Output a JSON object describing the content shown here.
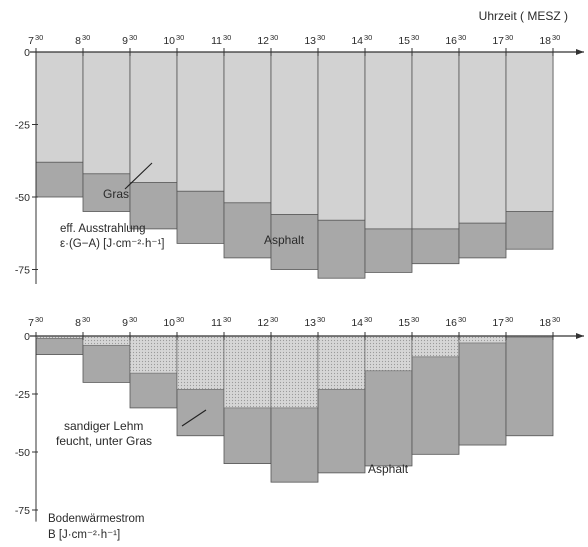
{
  "colors": {
    "grass": "#d2d2d2",
    "asphalt": "#a8a8a8",
    "axis": "#333333",
    "grid": "#b5b5b5"
  },
  "chart_data": [
    {
      "type": "bar",
      "x_time_label": "Uhrzeit ( MESZ )",
      "x_ticks": [
        {
          "h": "7",
          "m": "30"
        },
        {
          "h": "8",
          "m": "30"
        },
        {
          "h": "9",
          "m": "30"
        },
        {
          "h": "10",
          "m": "30"
        },
        {
          "h": "11",
          "m": "30"
        },
        {
          "h": "12",
          "m": "30"
        },
        {
          "h": "13",
          "m": "30"
        },
        {
          "h": "14",
          "m": "30"
        },
        {
          "h": "15",
          "m": "30"
        },
        {
          "h": "16",
          "m": "30"
        },
        {
          "h": "17",
          "m": "30"
        },
        {
          "h": "18",
          "m": "30"
        }
      ],
      "y_ticks": [
        "0",
        "-25",
        "-50",
        "-75"
      ],
      "ylim": [
        -80,
        0
      ],
      "ylabel_line1": "eff. Ausstrahlung",
      "ylabel_line2": "ε·(G−A) [J·cm⁻²·h⁻¹]",
      "series": [
        {
          "name": "Gras",
          "values": [
            -38,
            -42,
            -45,
            -48,
            -52,
            -56,
            -58,
            -61,
            -61,
            -59,
            -55
          ]
        },
        {
          "name": "Asphalt",
          "values": [
            -50,
            -55,
            -61,
            -66,
            -71,
            -75,
            -78,
            -76,
            -73,
            -71,
            -68
          ]
        }
      ]
    },
    {
      "type": "bar",
      "x_ticks": [
        {
          "h": "7",
          "m": "30"
        },
        {
          "h": "8",
          "m": "30"
        },
        {
          "h": "9",
          "m": "30"
        },
        {
          "h": "10",
          "m": "30"
        },
        {
          "h": "11",
          "m": "30"
        },
        {
          "h": "12",
          "m": "30"
        },
        {
          "h": "13",
          "m": "30"
        },
        {
          "h": "14",
          "m": "30"
        },
        {
          "h": "15",
          "m": "30"
        },
        {
          "h": "16",
          "m": "30"
        },
        {
          "h": "17",
          "m": "30"
        },
        {
          "h": "18",
          "m": "30"
        }
      ],
      "y_ticks": [
        "0",
        "-25",
        "-50",
        "-75"
      ],
      "ylim": [
        -80,
        0
      ],
      "ylabel_line1": "Bodenwärmestrom",
      "ylabel_line2": "B [J·cm⁻²·h⁻¹]",
      "series": [
        {
          "name_line1": "sandiger Lehm",
          "name_line2": "feucht, unter Gras",
          "values": [
            -1,
            -4,
            -16,
            -23,
            -31,
            -31,
            -23,
            -15,
            -9,
            -3,
            -0.5
          ]
        },
        {
          "name": "Asphalt",
          "values": [
            -8,
            -20,
            -31,
            -43,
            -55,
            -63,
            -59,
            -56,
            -51,
            -47,
            -43
          ]
        }
      ]
    }
  ]
}
